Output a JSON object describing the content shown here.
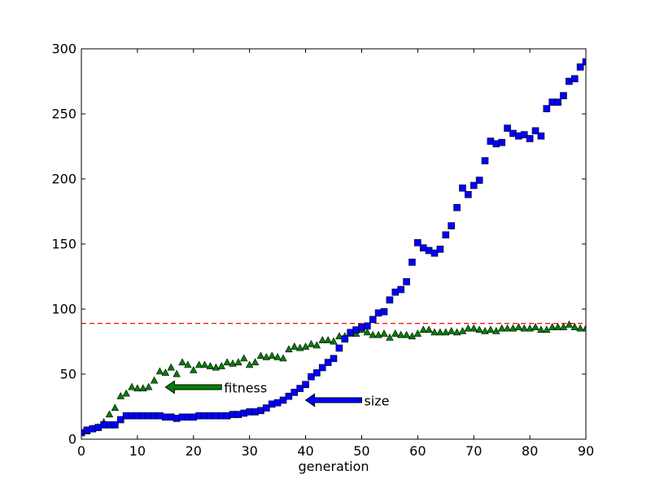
{
  "chart_data": {
    "type": "scatter",
    "title": "",
    "xlabel": "generation",
    "ylabel": "",
    "xlim": [
      0,
      90
    ],
    "ylim": [
      0,
      300
    ],
    "x_ticks": [
      "0",
      "10",
      "20",
      "30",
      "40",
      "50",
      "60",
      "70",
      "80",
      "90"
    ],
    "y_ticks": [
      "0",
      "50",
      "100",
      "150",
      "200",
      "250",
      "300"
    ],
    "grid": false,
    "legend": "none",
    "reference_line": {
      "y": 89,
      "color": "#ff0000",
      "style": "dashed"
    },
    "series": [
      {
        "name": "size",
        "marker": "square",
        "color": "#0000ff",
        "x": [
          0,
          1,
          2,
          3,
          4,
          5,
          6,
          7,
          8,
          9,
          10,
          11,
          12,
          13,
          14,
          15,
          16,
          17,
          18,
          19,
          20,
          21,
          22,
          23,
          24,
          25,
          26,
          27,
          28,
          29,
          30,
          31,
          32,
          33,
          34,
          35,
          36,
          37,
          38,
          39,
          40,
          41,
          42,
          43,
          44,
          45,
          46,
          47,
          48,
          49,
          50,
          51,
          52,
          53,
          54,
          55,
          56,
          57,
          58,
          59,
          60,
          61,
          62,
          63,
          64,
          65,
          66,
          67,
          68,
          69,
          70,
          71,
          72,
          73,
          74,
          75,
          76,
          77,
          78,
          79,
          80,
          81,
          82,
          83,
          84,
          85,
          86,
          87,
          88,
          89,
          90
        ],
        "y": [
          5,
          7,
          8,
          9,
          11,
          11,
          11,
          15,
          18,
          18,
          18,
          18,
          18,
          18,
          18,
          17,
          17,
          16,
          17,
          17,
          17,
          18,
          18,
          18,
          18,
          18,
          18,
          19,
          19,
          20,
          21,
          21,
          22,
          24,
          27,
          28,
          30,
          33,
          36,
          39,
          42,
          48,
          51,
          55,
          59,
          62,
          70,
          77,
          82,
          84,
          86,
          87,
          92,
          97,
          98,
          107,
          113,
          115,
          121,
          136,
          151,
          147,
          145,
          143,
          146,
          157,
          164,
          178,
          193,
          188,
          195,
          199,
          214,
          229,
          227,
          228,
          239,
          235,
          233,
          234,
          231,
          237,
          233,
          254,
          259,
          259,
          264,
          275,
          277,
          286,
          290
        ]
      },
      {
        "name": "fitness",
        "marker": "triangle",
        "color": "#008000",
        "x": [
          0,
          1,
          2,
          3,
          4,
          5,
          6,
          7,
          8,
          9,
          10,
          11,
          12,
          13,
          14,
          15,
          16,
          17,
          18,
          19,
          20,
          21,
          22,
          23,
          24,
          25,
          26,
          27,
          28,
          29,
          30,
          31,
          32,
          33,
          34,
          35,
          36,
          37,
          38,
          39,
          40,
          41,
          42,
          43,
          44,
          45,
          46,
          47,
          48,
          49,
          50,
          51,
          52,
          53,
          54,
          55,
          56,
          57,
          58,
          59,
          60,
          61,
          62,
          63,
          64,
          65,
          66,
          67,
          68,
          69,
          70,
          71,
          72,
          73,
          74,
          75,
          76,
          77,
          78,
          79,
          80,
          81,
          82,
          83,
          84,
          85,
          86,
          87,
          88,
          89,
          90
        ],
        "y": [
          5,
          6,
          8,
          9,
          13,
          19,
          24,
          33,
          35,
          40,
          39,
          39,
          40,
          45,
          52,
          51,
          55,
          50,
          59,
          57,
          53,
          57,
          57,
          56,
          55,
          56,
          59,
          58,
          59,
          62,
          57,
          59,
          64,
          63,
          64,
          63,
          62,
          69,
          71,
          70,
          71,
          73,
          72,
          76,
          76,
          75,
          79,
          79,
          81,
          81,
          84,
          82,
          80,
          80,
          81,
          78,
          81,
          80,
          80,
          79,
          81,
          84,
          84,
          82,
          82,
          82,
          83,
          82,
          83,
          85,
          85,
          84,
          83,
          84,
          83,
          85,
          85,
          85,
          86,
          85,
          85,
          86,
          84,
          84,
          86,
          86,
          86,
          88,
          86,
          85,
          85
        ]
      }
    ],
    "annotations": [
      {
        "text": "fitness",
        "arrow_from": [
          25,
          40
        ],
        "arrow_to": [
          15,
          40
        ],
        "arrow_color": "#008000"
      },
      {
        "text": "size",
        "arrow_from": [
          50,
          30
        ],
        "arrow_to": [
          40,
          30
        ],
        "arrow_color": "#0000ff"
      }
    ]
  }
}
